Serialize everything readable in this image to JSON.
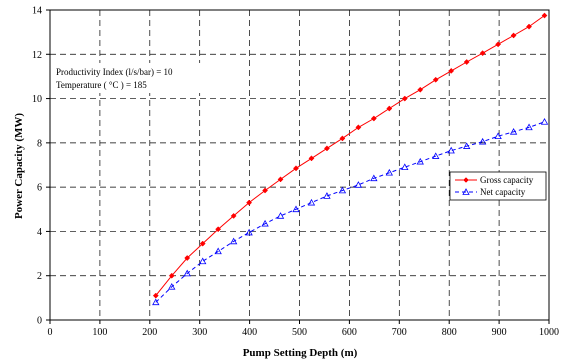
{
  "chart_data": {
    "type": "line",
    "title": "",
    "xlabel": "Pump Setting Depth (m)",
    "ylabel": "Power Capacity (MW)",
    "xlim": [
      0,
      1000
    ],
    "ylim": [
      0,
      14
    ],
    "xticks": [
      "0",
      "100",
      "200",
      "300",
      "400",
      "500",
      "600",
      "700",
      "800",
      "900",
      "1000"
    ],
    "yticks": [
      "0",
      "2",
      "4",
      "6",
      "8",
      "10",
      "12",
      "14"
    ],
    "grid": true,
    "legend_position": "right",
    "annotations": [
      "Productivity Index (l/s/bar) = 10",
      "Temperature ( °C ) = 185"
    ],
    "x": [
      212,
      244,
      275,
      306,
      337,
      368,
      399,
      431,
      462,
      493,
      524,
      555,
      586,
      618,
      649,
      680,
      711,
      742,
      773,
      804,
      835,
      867,
      898,
      929,
      960,
      991
    ],
    "series": [
      {
        "name": "Gross capacity",
        "color": "#ff0000",
        "marker": "diamond",
        "line_style": "solid",
        "values": [
          1.1,
          2.0,
          2.8,
          3.45,
          4.1,
          4.7,
          5.3,
          5.85,
          6.35,
          6.85,
          7.3,
          7.75,
          8.2,
          8.7,
          9.1,
          9.55,
          10.0,
          10.4,
          10.85,
          11.25,
          11.65,
          12.05,
          12.45,
          12.85,
          13.25,
          13.75
        ]
      },
      {
        "name": "Net capacity",
        "color": "#0000ff",
        "marker": "triangle",
        "line_style": "dashed",
        "values": [
          0.8,
          1.5,
          2.1,
          2.65,
          3.1,
          3.55,
          3.95,
          4.35,
          4.7,
          5.0,
          5.3,
          5.6,
          5.85,
          6.1,
          6.4,
          6.65,
          6.9,
          7.15,
          7.4,
          7.65,
          7.85,
          8.05,
          8.3,
          8.5,
          8.7,
          8.95
        ]
      }
    ]
  }
}
